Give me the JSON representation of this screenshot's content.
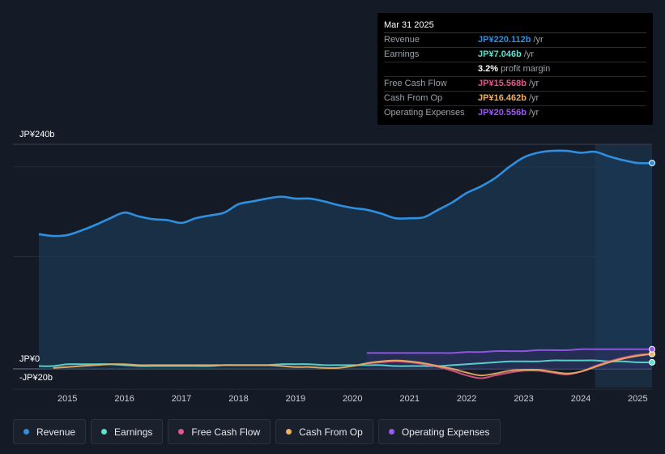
{
  "tooltip": {
    "date": "Mar 31 2025",
    "rows": [
      {
        "name": "Revenue",
        "value": "JP¥220.112b",
        "unit": "/yr",
        "color": "#2e8fe0"
      },
      {
        "name": "Earnings",
        "value": "JP¥7.046b",
        "unit": "/yr",
        "color": "#5de0d0"
      },
      {
        "name": "",
        "value": "3.2%",
        "unit": "profit margin",
        "color": "#ffffff"
      },
      {
        "name": "Free Cash Flow",
        "value": "JP¥15.568b",
        "unit": "/yr",
        "color": "#e0578a"
      },
      {
        "name": "Cash From Op",
        "value": "JP¥16.462b",
        "unit": "/yr",
        "color": "#f0b060"
      },
      {
        "name": "Operating Expenses",
        "value": "JP¥20.556b",
        "unit": "/yr",
        "color": "#9b59f0"
      }
    ]
  },
  "legend": [
    {
      "label": "Revenue",
      "color": "#2e8fe0"
    },
    {
      "label": "Earnings",
      "color": "#5de0d0"
    },
    {
      "label": "Free Cash Flow",
      "color": "#e0578a"
    },
    {
      "label": "Cash From Op",
      "color": "#f0b060"
    },
    {
      "label": "Operating Expenses",
      "color": "#9b59f0"
    }
  ],
  "chart_data": {
    "type": "line",
    "y_top_label": "JP¥240b",
    "y_zero_label": "JP¥0",
    "y_bottom_label": "-JP¥20b",
    "ylim": [
      -20,
      240
    ],
    "xlim": [
      2014.5,
      2025.25
    ],
    "x_ticks": [
      "2015",
      "2016",
      "2017",
      "2018",
      "2019",
      "2020",
      "2021",
      "2022",
      "2023",
      "2024",
      "2025"
    ],
    "highlight_start": 2024.25,
    "series": [
      {
        "name": "Revenue",
        "color": "#2e8fe0",
        "x": [
          2014.5,
          2014.75,
          2015.0,
          2015.25,
          2015.5,
          2015.75,
          2016.0,
          2016.25,
          2016.5,
          2016.75,
          2017.0,
          2017.25,
          2017.5,
          2017.75,
          2018.0,
          2018.25,
          2018.5,
          2018.75,
          2019.0,
          2019.25,
          2019.5,
          2019.75,
          2020.0,
          2020.25,
          2020.5,
          2020.75,
          2021.0,
          2021.25,
          2021.5,
          2021.75,
          2022.0,
          2022.25,
          2022.5,
          2022.75,
          2023.0,
          2023.25,
          2023.5,
          2023.75,
          2024.0,
          2024.25,
          2024.5,
          2024.75,
          2025.0,
          2025.25
        ],
        "values": [
          144,
          142,
          143,
          148,
          154,
          161,
          167,
          163,
          160,
          159,
          156,
          161,
          164,
          167,
          176,
          179,
          182,
          184,
          182,
          182,
          179,
          175,
          172,
          170,
          166,
          161,
          161,
          162,
          170,
          178,
          188,
          195,
          204,
          216,
          226,
          231,
          233,
          233,
          231,
          232,
          227,
          223,
          220,
          220
        ]
      },
      {
        "name": "Earnings",
        "color": "#5de0d0",
        "x": [
          2014.5,
          2014.75,
          2015.0,
          2015.25,
          2015.5,
          2015.75,
          2016.0,
          2016.25,
          2016.5,
          2016.75,
          2017.0,
          2017.25,
          2017.5,
          2017.75,
          2018.0,
          2018.25,
          2018.5,
          2018.75,
          2019.0,
          2019.25,
          2019.5,
          2019.75,
          2020.0,
          2020.25,
          2020.5,
          2020.75,
          2021.0,
          2021.25,
          2021.5,
          2021.75,
          2022.0,
          2022.25,
          2022.5,
          2022.75,
          2023.0,
          2023.25,
          2023.5,
          2023.75,
          2024.0,
          2024.25,
          2024.5,
          2024.75,
          2025.0,
          2025.25
        ],
        "values": [
          3,
          3,
          5,
          5,
          5,
          5,
          4,
          3,
          3,
          3,
          3,
          3,
          3,
          4,
          4,
          4,
          4,
          5,
          5,
          5,
          4,
          4,
          4,
          4,
          4,
          3,
          3,
          3,
          3,
          4,
          5,
          6,
          7,
          8,
          8,
          8,
          9,
          9,
          9,
          9,
          8,
          8,
          7,
          7
        ]
      },
      {
        "name": "Free Cash Flow",
        "color": "#e0578a",
        "x": [
          2020.25,
          2020.5,
          2020.75,
          2021.0,
          2021.25,
          2021.5,
          2021.75,
          2022.0,
          2022.25,
          2022.5,
          2022.75,
          2023.0,
          2023.25,
          2023.5,
          2023.75,
          2024.0,
          2024.25,
          2024.5,
          2024.75,
          2025.0,
          2025.25
        ],
        "values": [
          6,
          7,
          8,
          7,
          5,
          2,
          -2,
          -7,
          -10,
          -7,
          -4,
          -2,
          -2,
          -4,
          -6,
          -3,
          3,
          8,
          12,
          15,
          16
        ]
      },
      {
        "name": "Cash From Op",
        "color": "#f0b060",
        "x": [
          2014.75,
          2015.0,
          2015.25,
          2015.5,
          2015.75,
          2016.0,
          2016.25,
          2016.5,
          2016.75,
          2017.0,
          2017.25,
          2017.5,
          2017.75,
          2018.0,
          2018.25,
          2018.5,
          2018.75,
          2019.0,
          2019.25,
          2019.5,
          2019.75,
          2020.0,
          2020.25,
          2020.5,
          2020.75,
          2021.0,
          2021.25,
          2021.5,
          2021.75,
          2022.0,
          2022.25,
          2022.5,
          2022.75,
          2023.0,
          2023.25,
          2023.5,
          2023.75,
          2024.0,
          2024.25,
          2024.5,
          2024.75,
          2025.0,
          2025.25
        ],
        "values": [
          1,
          2,
          3,
          4,
          5,
          5,
          4,
          4,
          4,
          4,
          4,
          4,
          4,
          4,
          4,
          4,
          3,
          2,
          2,
          1,
          1,
          3,
          6,
          8,
          9,
          8,
          6,
          3,
          0,
          -4,
          -7,
          -5,
          -2,
          -1,
          -1,
          -3,
          -5,
          -3,
          2,
          7,
          11,
          14,
          16
        ]
      },
      {
        "name": "Operating Expenses",
        "color": "#9b59f0",
        "x": [
          2020.25,
          2020.5,
          2020.75,
          2021.0,
          2021.25,
          2021.5,
          2021.75,
          2022.0,
          2022.25,
          2022.5,
          2022.75,
          2023.0,
          2023.25,
          2023.5,
          2023.75,
          2024.0,
          2024.25,
          2024.5,
          2024.75,
          2025.0,
          2025.25
        ],
        "values": [
          17,
          17,
          17,
          17,
          17,
          17,
          17,
          18,
          18,
          19,
          19,
          19,
          20,
          20,
          20,
          21,
          21,
          21,
          21,
          21,
          21
        ]
      }
    ]
  }
}
